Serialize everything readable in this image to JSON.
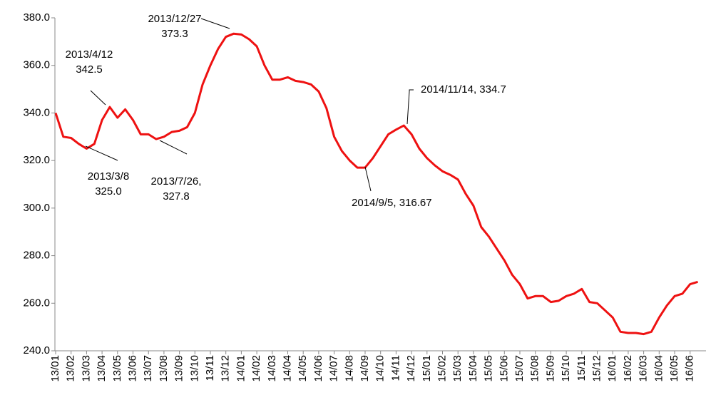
{
  "chart_data": {
    "type": "line",
    "categories": [
      "13/01",
      null,
      "13/02",
      null,
      "13/03",
      null,
      "13/04",
      null,
      "13/05",
      null,
      "13/06",
      null,
      "13/07",
      null,
      "13/08",
      null,
      "13/09",
      null,
      "13/10",
      null,
      "13/11",
      null,
      "13/12",
      null,
      "14/01",
      null,
      "14/02",
      null,
      "14/03",
      null,
      "14/04",
      null,
      "14/05",
      null,
      "14/06",
      null,
      "14/07",
      null,
      "14/08",
      null,
      "14/09",
      null,
      "14/10",
      null,
      "14/11",
      null,
      "14/12",
      null,
      "15/01",
      null,
      "15/02",
      null,
      "15/03",
      null,
      "15/04",
      null,
      "15/05",
      null,
      "15/06",
      null,
      "15/07",
      null,
      "15/08",
      null,
      "15/09",
      null,
      "15/10",
      null,
      "15/11",
      null,
      "15/12",
      null,
      "16/01",
      null,
      "16/02",
      null,
      "16/03",
      null,
      "16/04",
      null,
      "16/05",
      null,
      "16/06",
      null
    ],
    "series": [
      {
        "color": "#ee1111",
        "values": [
          340,
          330,
          329.5,
          327,
          325,
          327,
          337,
          342.5,
          338,
          341.5,
          337,
          331,
          331,
          329,
          330,
          332,
          332.5,
          334,
          340,
          352,
          360,
          367,
          372,
          373.3,
          373,
          371,
          368,
          360,
          354,
          354,
          355,
          353.5,
          353,
          352,
          349,
          342,
          330,
          324,
          320,
          317,
          317,
          321,
          326,
          331,
          333,
          334.7,
          331,
          325,
          321,
          318,
          315.5,
          314,
          312,
          306,
          301,
          292,
          288,
          283,
          278,
          272,
          268,
          262,
          263,
          263,
          260.5,
          261,
          263,
          264,
          266,
          260.5,
          260,
          257,
          254,
          248,
          247.5,
          247.5,
          247,
          248,
          254,
          259,
          263,
          264,
          268,
          269
        ]
      }
    ],
    "ylim": [
      240,
      380
    ],
    "yticks": [
      {
        "value": 240,
        "label": "240.0"
      },
      {
        "value": 260,
        "label": "260.0"
      },
      {
        "value": 280,
        "label": "280.0"
      },
      {
        "value": 300,
        "label": "300.0"
      },
      {
        "value": 320,
        "label": "320.0"
      },
      {
        "value": 340,
        "label": "340.0"
      },
      {
        "value": 360,
        "label": "360.0"
      },
      {
        "value": 380,
        "label": "380.0"
      }
    ],
    "annotations": [
      {
        "lines": [
          "2013/12/27",
          "373.3"
        ]
      },
      {
        "lines": [
          "2013/4/12",
          "342.5"
        ]
      },
      {
        "lines": [
          "2013/3/8",
          "325.0"
        ]
      },
      {
        "lines": [
          "2013/7/26,",
          "327.8"
        ]
      },
      {
        "lines": [
          "2014/11/14, 334.7"
        ]
      },
      {
        "lines": [
          "2014/9/5, 316.67"
        ]
      }
    ]
  }
}
